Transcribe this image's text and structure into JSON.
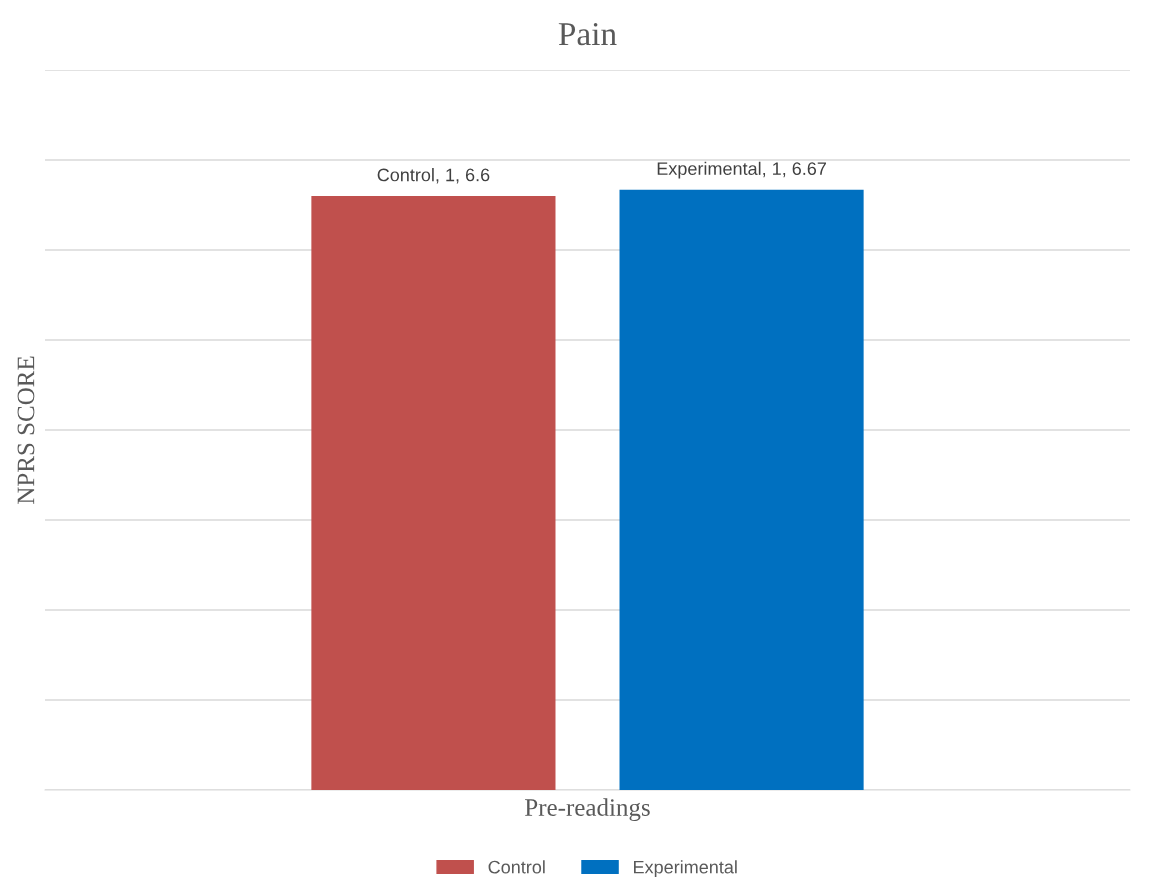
{
  "chart_data": {
    "type": "bar",
    "title": "Pain",
    "xlabel": "Pre-readings",
    "ylabel": "NPRS SCORE",
    "categories": [
      null
    ],
    "series": [
      {
        "name": "Control",
        "color": "#c0504d",
        "values": [
          6.6
        ],
        "value_labels": [
          "Control, 1, 6.6"
        ]
      },
      {
        "name": "Experimental",
        "color": "#0070c0",
        "values": [
          6.67
        ],
        "value_labels": [
          "Experimental, 1, 6.67"
        ]
      }
    ],
    "ylim": [
      0,
      8
    ],
    "yticks": [
      {
        "value": 0,
        "label": null
      },
      {
        "value": 1,
        "label": null
      },
      {
        "value": 2,
        "label": null
      },
      {
        "value": 3,
        "label": null
      },
      {
        "value": 4,
        "label": null
      },
      {
        "value": 5,
        "label": null
      },
      {
        "value": 6,
        "label": null
      },
      {
        "value": 7,
        "label": null
      },
      {
        "value": 8,
        "label": null
      }
    ],
    "tick_labels": false,
    "grid": "y",
    "legend": "bottom"
  }
}
